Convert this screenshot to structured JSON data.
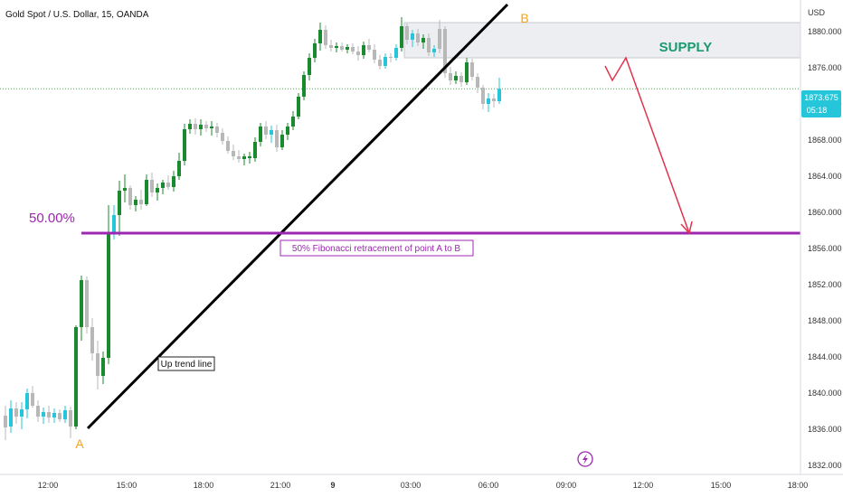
{
  "header": {
    "title": "Gold Spot / U.S. Dollar, 15, OANDA",
    "currency": "USD"
  },
  "price_label": {
    "price": "1873.675",
    "countdown": "05:18",
    "color": "#26c6da"
  },
  "annotations": {
    "point_a": "A",
    "point_b": "B",
    "supply": "SUPPLY",
    "fib_level": "50.00%",
    "fib_text": "50% Fibonacci retracement of point A to B",
    "trend_text": "Up trend line"
  },
  "colors": {
    "up": "#1a8a2e",
    "down": "#b8b8b8",
    "up_alt": "#26c6da",
    "fib": "#9c27b0",
    "supply_fill": "#eceef2",
    "supply_text": "#1a9a6e",
    "arrow": "#e0344e",
    "ab_label": "#f7a21b",
    "current_line": "#4caf50"
  },
  "chart_data": {
    "type": "candlestick",
    "symbol": "Gold Spot / U.S. Dollar",
    "interval": "15",
    "source": "OANDA",
    "yticks": [
      1832,
      1836,
      1840,
      1844,
      1848,
      1852,
      1856,
      1860,
      1864,
      1868,
      1872,
      1876,
      1880
    ],
    "ytick_labels": [
      "1832.000",
      "1836.000",
      "1840.000",
      "1844.000",
      "1848.000",
      "1852.000",
      "1856.000",
      "1860.000",
      "1864.000",
      "1868.000",
      "1872.000",
      "1876.000",
      "1880.000"
    ],
    "ylim": [
      1831,
      1883.5
    ],
    "xticks": [
      "12:00",
      "15:00",
      "18:00",
      "21:00",
      "9",
      "03:00",
      "06:00",
      "09:00",
      "12:00",
      "15:00",
      "18:00"
    ],
    "current_price": 1873.675,
    "fib_level": 1857.7,
    "supply_zone": [
      1877.1,
      1881.0
    ],
    "candles": [
      {
        "o": 1837.5,
        "h": 1838.6,
        "l": 1834.8,
        "c": 1836.2,
        "s": "down"
      },
      {
        "o": 1836.3,
        "h": 1839.2,
        "l": 1835.6,
        "c": 1838.3,
        "s": "up2"
      },
      {
        "o": 1838.3,
        "h": 1839.0,
        "l": 1836.6,
        "c": 1837.4,
        "s": "down"
      },
      {
        "o": 1837.4,
        "h": 1839.0,
        "l": 1836.0,
        "c": 1838.2,
        "s": "up2"
      },
      {
        "o": 1838.2,
        "h": 1840.5,
        "l": 1837.2,
        "c": 1840.0,
        "s": "up2"
      },
      {
        "o": 1840.0,
        "h": 1840.8,
        "l": 1838.4,
        "c": 1838.6,
        "s": "down"
      },
      {
        "o": 1838.6,
        "h": 1839.2,
        "l": 1836.8,
        "c": 1837.4,
        "s": "down"
      },
      {
        "o": 1837.4,
        "h": 1838.4,
        "l": 1836.6,
        "c": 1837.9,
        "s": "up2"
      },
      {
        "o": 1837.9,
        "h": 1838.6,
        "l": 1836.7,
        "c": 1837.3,
        "s": "down"
      },
      {
        "o": 1837.3,
        "h": 1838.3,
        "l": 1836.7,
        "c": 1837.8,
        "s": "up2"
      },
      {
        "o": 1837.8,
        "h": 1838.2,
        "l": 1836.8,
        "c": 1837.1,
        "s": "down"
      },
      {
        "o": 1837.1,
        "h": 1838.6,
        "l": 1836.7,
        "c": 1838.1,
        "s": "up2"
      },
      {
        "o": 1838.1,
        "h": 1838.5,
        "l": 1835.0,
        "c": 1836.3,
        "s": "down"
      },
      {
        "o": 1836.3,
        "h": 1847.5,
        "l": 1836.0,
        "c": 1847.3,
        "s": "up"
      },
      {
        "o": 1847.3,
        "h": 1853.0,
        "l": 1845.8,
        "c": 1852.5,
        "s": "up"
      },
      {
        "o": 1852.5,
        "h": 1852.9,
        "l": 1846.6,
        "c": 1847.3,
        "s": "down"
      },
      {
        "o": 1847.3,
        "h": 1848.3,
        "l": 1843.6,
        "c": 1844.4,
        "s": "down"
      },
      {
        "o": 1844.4,
        "h": 1845.8,
        "l": 1840.4,
        "c": 1841.9,
        "s": "down"
      },
      {
        "o": 1841.9,
        "h": 1844.6,
        "l": 1841.0,
        "c": 1843.9,
        "s": "up"
      },
      {
        "o": 1843.9,
        "h": 1860.8,
        "l": 1843.2,
        "c": 1857.7,
        "s": "up"
      },
      {
        "o": 1857.7,
        "h": 1860.8,
        "l": 1857.0,
        "c": 1859.7,
        "s": "up2"
      },
      {
        "o": 1859.7,
        "h": 1863.5,
        "l": 1857.4,
        "c": 1862.4,
        "s": "up"
      },
      {
        "o": 1862.4,
        "h": 1864.2,
        "l": 1861.1,
        "c": 1862.7,
        "s": "up"
      },
      {
        "o": 1862.7,
        "h": 1863.0,
        "l": 1860.3,
        "c": 1860.8,
        "s": "down"
      },
      {
        "o": 1860.8,
        "h": 1861.8,
        "l": 1860.1,
        "c": 1861.4,
        "s": "up"
      },
      {
        "o": 1861.4,
        "h": 1862.5,
        "l": 1860.3,
        "c": 1860.9,
        "s": "down"
      },
      {
        "o": 1860.9,
        "h": 1864.2,
        "l": 1860.7,
        "c": 1863.6,
        "s": "up"
      },
      {
        "o": 1863.6,
        "h": 1864.4,
        "l": 1861.7,
        "c": 1862.2,
        "s": "down"
      },
      {
        "o": 1862.2,
        "h": 1863.2,
        "l": 1861.3,
        "c": 1862.7,
        "s": "up"
      },
      {
        "o": 1862.7,
        "h": 1863.6,
        "l": 1862.0,
        "c": 1863.3,
        "s": "up"
      },
      {
        "o": 1863.3,
        "h": 1864.1,
        "l": 1862.5,
        "c": 1862.8,
        "s": "down"
      },
      {
        "o": 1862.8,
        "h": 1864.6,
        "l": 1862.3,
        "c": 1864.0,
        "s": "up"
      },
      {
        "o": 1864.0,
        "h": 1866.6,
        "l": 1863.6,
        "c": 1865.7,
        "s": "up"
      },
      {
        "o": 1865.7,
        "h": 1869.8,
        "l": 1865.2,
        "c": 1869.2,
        "s": "up"
      },
      {
        "o": 1869.2,
        "h": 1870.3,
        "l": 1868.7,
        "c": 1869.8,
        "s": "up"
      },
      {
        "o": 1869.8,
        "h": 1870.4,
        "l": 1868.6,
        "c": 1869.2,
        "s": "down"
      },
      {
        "o": 1869.2,
        "h": 1870.3,
        "l": 1868.5,
        "c": 1869.7,
        "s": "up"
      },
      {
        "o": 1869.7,
        "h": 1870.1,
        "l": 1868.9,
        "c": 1869.3,
        "s": "down"
      },
      {
        "o": 1869.3,
        "h": 1870.1,
        "l": 1868.5,
        "c": 1869.5,
        "s": "up"
      },
      {
        "o": 1869.5,
        "h": 1869.9,
        "l": 1868.3,
        "c": 1868.8,
        "s": "down"
      },
      {
        "o": 1868.8,
        "h": 1869.3,
        "l": 1867.5,
        "c": 1867.9,
        "s": "down"
      },
      {
        "o": 1867.9,
        "h": 1868.4,
        "l": 1866.5,
        "c": 1866.8,
        "s": "down"
      },
      {
        "o": 1866.8,
        "h": 1867.5,
        "l": 1865.8,
        "c": 1866.2,
        "s": "down"
      },
      {
        "o": 1866.2,
        "h": 1866.9,
        "l": 1865.5,
        "c": 1865.9,
        "s": "down"
      },
      {
        "o": 1865.9,
        "h": 1866.5,
        "l": 1865.2,
        "c": 1866.2,
        "s": "up"
      },
      {
        "o": 1866.2,
        "h": 1866.7,
        "l": 1865.4,
        "c": 1866.0,
        "s": "up"
      },
      {
        "o": 1866.0,
        "h": 1868.3,
        "l": 1865.6,
        "c": 1867.8,
        "s": "up"
      },
      {
        "o": 1867.8,
        "h": 1869.9,
        "l": 1867.3,
        "c": 1869.5,
        "s": "up"
      },
      {
        "o": 1869.5,
        "h": 1870.1,
        "l": 1868.1,
        "c": 1868.6,
        "s": "down"
      },
      {
        "o": 1868.6,
        "h": 1869.6,
        "l": 1867.7,
        "c": 1869.1,
        "s": "up2"
      },
      {
        "o": 1869.1,
        "h": 1869.7,
        "l": 1866.7,
        "c": 1867.2,
        "s": "down"
      },
      {
        "o": 1867.2,
        "h": 1869.1,
        "l": 1866.9,
        "c": 1868.6,
        "s": "up"
      },
      {
        "o": 1868.6,
        "h": 1869.9,
        "l": 1868.0,
        "c": 1869.5,
        "s": "up"
      },
      {
        "o": 1869.5,
        "h": 1871.2,
        "l": 1869.1,
        "c": 1870.6,
        "s": "up"
      },
      {
        "o": 1870.6,
        "h": 1873.2,
        "l": 1870.3,
        "c": 1872.8,
        "s": "up"
      },
      {
        "o": 1872.8,
        "h": 1875.6,
        "l": 1872.4,
        "c": 1875.2,
        "s": "up"
      },
      {
        "o": 1875.2,
        "h": 1877.6,
        "l": 1874.6,
        "c": 1877.1,
        "s": "up"
      },
      {
        "o": 1877.1,
        "h": 1879.2,
        "l": 1876.6,
        "c": 1878.7,
        "s": "up"
      },
      {
        "o": 1878.7,
        "h": 1881.0,
        "l": 1877.9,
        "c": 1880.2,
        "s": "up"
      },
      {
        "o": 1880.2,
        "h": 1880.7,
        "l": 1878.1,
        "c": 1878.5,
        "s": "down"
      },
      {
        "o": 1878.5,
        "h": 1879.1,
        "l": 1877.8,
        "c": 1878.2,
        "s": "down"
      },
      {
        "o": 1878.2,
        "h": 1878.8,
        "l": 1877.7,
        "c": 1878.4,
        "s": "up"
      },
      {
        "o": 1878.4,
        "h": 1878.8,
        "l": 1877.8,
        "c": 1878.0,
        "s": "down"
      },
      {
        "o": 1878.0,
        "h": 1878.6,
        "l": 1877.6,
        "c": 1878.3,
        "s": "up"
      },
      {
        "o": 1878.3,
        "h": 1878.7,
        "l": 1877.5,
        "c": 1877.8,
        "s": "down"
      },
      {
        "o": 1877.8,
        "h": 1878.4,
        "l": 1876.8,
        "c": 1877.4,
        "s": "down"
      },
      {
        "o": 1877.4,
        "h": 1878.9,
        "l": 1877.0,
        "c": 1878.5,
        "s": "up"
      },
      {
        "o": 1878.5,
        "h": 1879.2,
        "l": 1877.7,
        "c": 1878.0,
        "s": "down"
      },
      {
        "o": 1878.0,
        "h": 1878.6,
        "l": 1876.5,
        "c": 1876.9,
        "s": "down"
      },
      {
        "o": 1876.9,
        "h": 1877.4,
        "l": 1875.8,
        "c": 1876.2,
        "s": "down"
      },
      {
        "o": 1876.2,
        "h": 1877.6,
        "l": 1875.9,
        "c": 1877.2,
        "s": "up2"
      },
      {
        "o": 1877.2,
        "h": 1877.6,
        "l": 1876.6,
        "c": 1877.1,
        "s": "down"
      },
      {
        "o": 1877.1,
        "h": 1878.6,
        "l": 1876.8,
        "c": 1878.2,
        "s": "up2"
      },
      {
        "o": 1878.2,
        "h": 1881.6,
        "l": 1877.8,
        "c": 1880.6,
        "s": "up"
      },
      {
        "o": 1880.6,
        "h": 1880.9,
        "l": 1878.6,
        "c": 1879.1,
        "s": "down"
      },
      {
        "o": 1879.1,
        "h": 1880.2,
        "l": 1878.3,
        "c": 1879.8,
        "s": "up2"
      },
      {
        "o": 1879.8,
        "h": 1880.3,
        "l": 1878.4,
        "c": 1878.8,
        "s": "down"
      },
      {
        "o": 1878.8,
        "h": 1879.7,
        "l": 1878.1,
        "c": 1879.3,
        "s": "up"
      },
      {
        "o": 1879.3,
        "h": 1879.8,
        "l": 1877.3,
        "c": 1877.7,
        "s": "down"
      },
      {
        "o": 1877.7,
        "h": 1878.5,
        "l": 1877.2,
        "c": 1878.1,
        "s": "up2"
      },
      {
        "o": 1878.1,
        "h": 1881.3,
        "l": 1877.6,
        "c": 1880.3,
        "s": "down"
      },
      {
        "o": 1880.3,
        "h": 1880.6,
        "l": 1874.9,
        "c": 1875.4,
        "s": "down"
      },
      {
        "o": 1875.4,
        "h": 1876.1,
        "l": 1874.1,
        "c": 1874.6,
        "s": "down"
      },
      {
        "o": 1874.6,
        "h": 1875.6,
        "l": 1874.2,
        "c": 1875.1,
        "s": "up"
      },
      {
        "o": 1875.1,
        "h": 1875.5,
        "l": 1873.9,
        "c": 1874.4,
        "s": "down"
      },
      {
        "o": 1874.4,
        "h": 1877.1,
        "l": 1874.1,
        "c": 1876.6,
        "s": "up"
      },
      {
        "o": 1876.6,
        "h": 1877.0,
        "l": 1874.6,
        "c": 1875.0,
        "s": "down"
      },
      {
        "o": 1875.0,
        "h": 1875.4,
        "l": 1873.2,
        "c": 1873.8,
        "s": "down"
      },
      {
        "o": 1873.8,
        "h": 1874.1,
        "l": 1871.4,
        "c": 1872.0,
        "s": "down"
      },
      {
        "o": 1872.0,
        "h": 1873.2,
        "l": 1871.1,
        "c": 1872.6,
        "s": "up2"
      },
      {
        "o": 1872.6,
        "h": 1873.1,
        "l": 1871.6,
        "c": 1872.3,
        "s": "down"
      },
      {
        "o": 1872.3,
        "h": 1874.9,
        "l": 1872.0,
        "c": 1873.675,
        "s": "up2"
      }
    ]
  }
}
